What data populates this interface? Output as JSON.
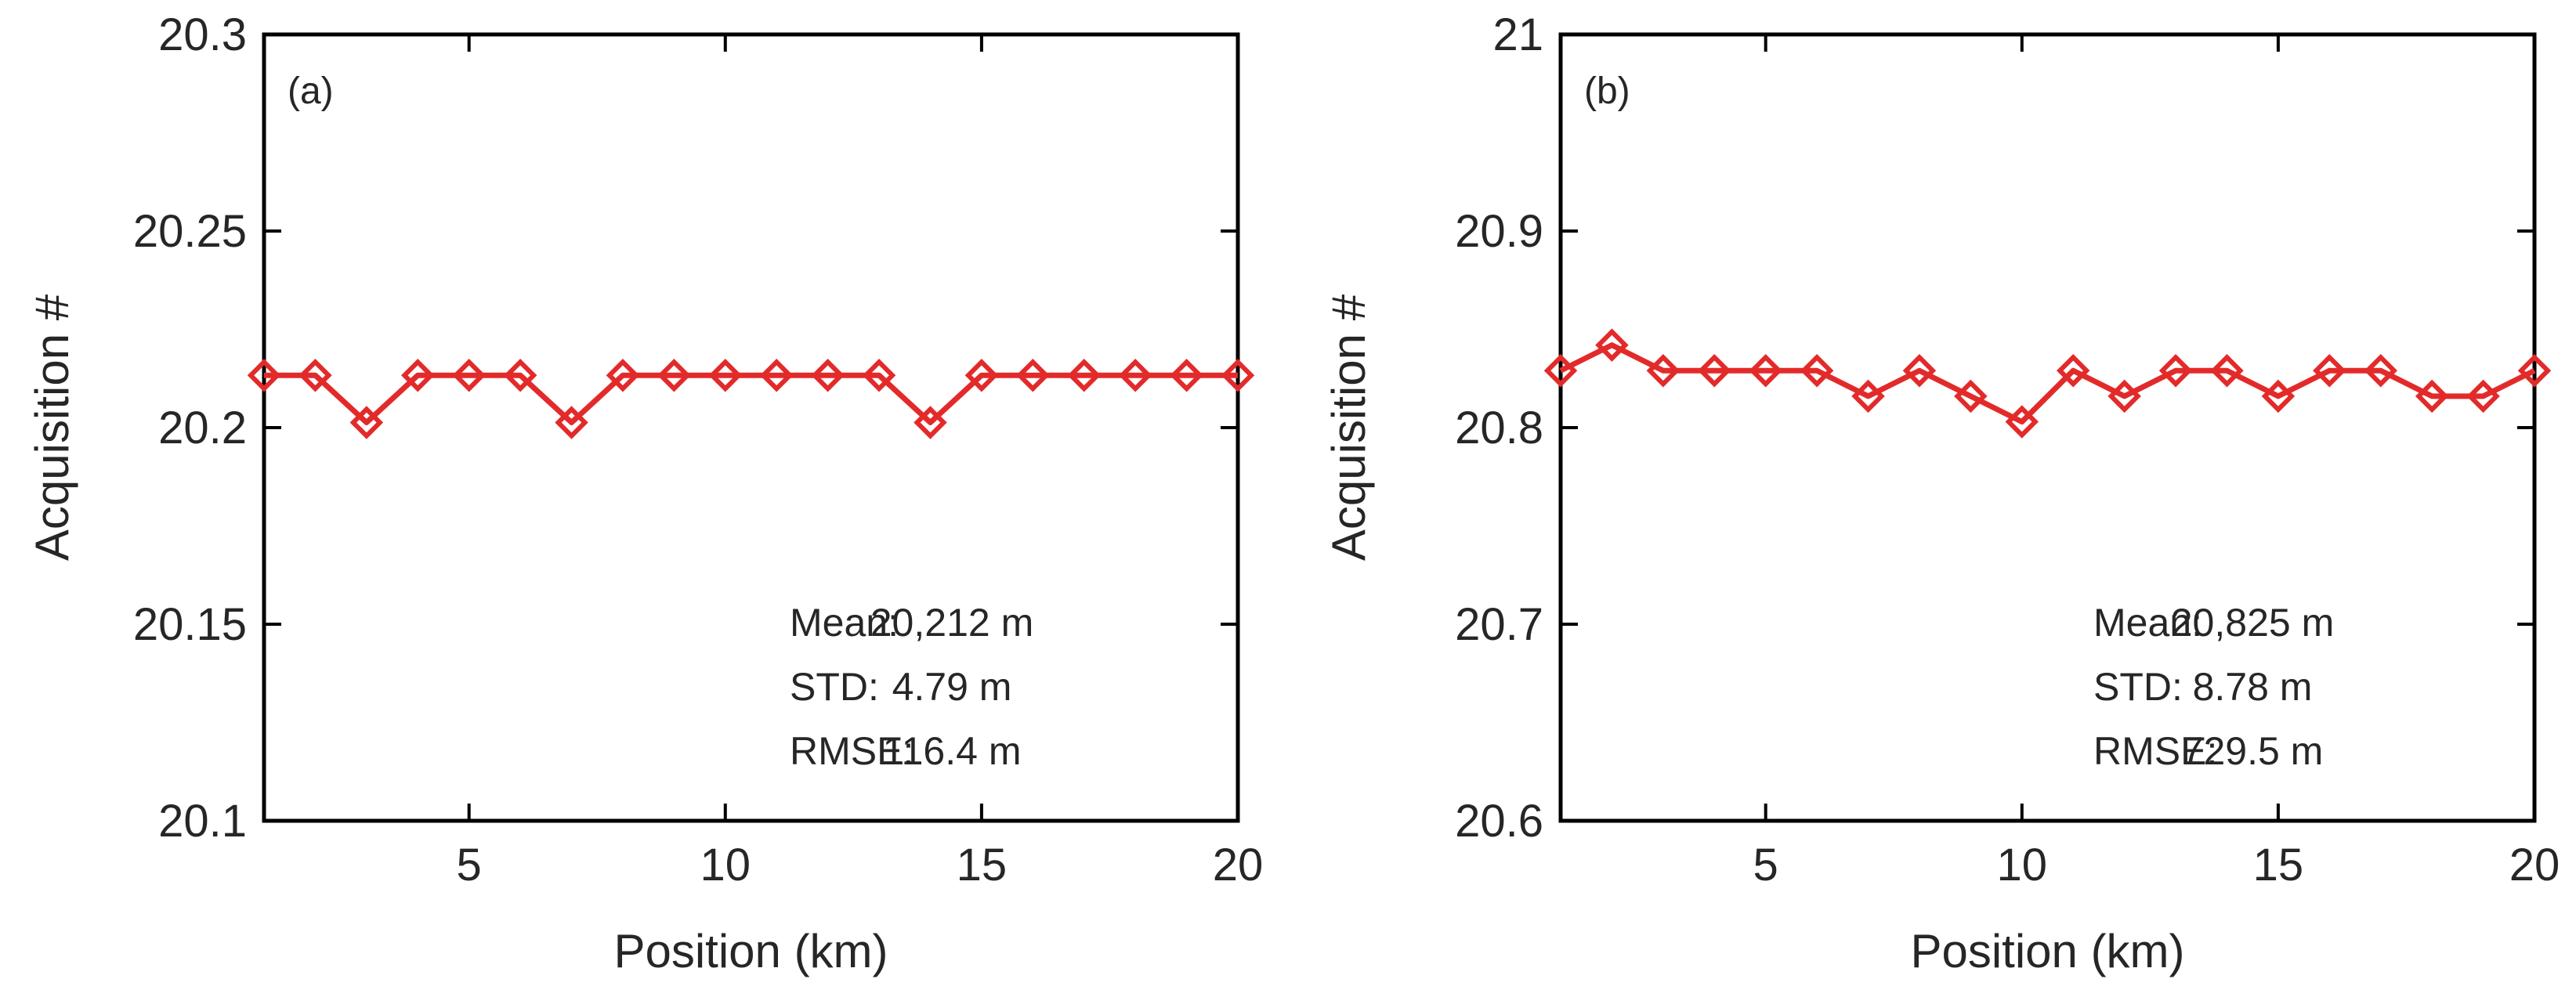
{
  "chart_data": [
    {
      "type": "line",
      "panel_label": "(a)",
      "xlabel": "Position (km)",
      "ylabel": "Acquisition #",
      "xlim": [
        1,
        20
      ],
      "ylim": [
        20.1,
        20.3
      ],
      "xticks": [
        5,
        10,
        15,
        20
      ],
      "xtick_labels": [
        "5",
        "10",
        "15",
        "20"
      ],
      "yticks": [
        20.1,
        20.15,
        20.2,
        20.25,
        20.3
      ],
      "ytick_labels": [
        "20.1",
        "20.15",
        "20.2",
        "20.25",
        "20.3"
      ],
      "grid": false,
      "color": "#e32a2a",
      "marker": "diamond",
      "series": [
        {
          "name": "Acquisition",
          "x": [
            1,
            2,
            3,
            4,
            5,
            6,
            7,
            8,
            9,
            10,
            11,
            12,
            13,
            14,
            15,
            16,
            17,
            18,
            19,
            20
          ],
          "values": [
            20.2133,
            20.2133,
            20.2013,
            20.2133,
            20.2133,
            20.2133,
            20.2013,
            20.2133,
            20.2133,
            20.2133,
            20.2133,
            20.2133,
            20.2133,
            20.2013,
            20.2133,
            20.2133,
            20.2133,
            20.2133,
            20.2133,
            20.2133
          ]
        }
      ],
      "stats": [
        {
          "label": "Mean:",
          "value": "20,212 m"
        },
        {
          "label": "STD:",
          "value": "4.79 m"
        },
        {
          "label": "RMSE:",
          "value": "116.4 m"
        }
      ]
    },
    {
      "type": "line",
      "panel_label": "(b)",
      "xlabel": "Position (km)",
      "ylabel": "Acquisition #",
      "xlim": [
        1,
        20
      ],
      "ylim": [
        20.6,
        21
      ],
      "xticks": [
        5,
        10,
        15,
        20
      ],
      "xtick_labels": [
        "5",
        "10",
        "15",
        "20"
      ],
      "yticks": [
        20.6,
        20.7,
        20.8,
        20.9,
        21
      ],
      "ytick_labels": [
        "20.6",
        "20.7",
        "20.8",
        "20.9",
        "21"
      ],
      "grid": false,
      "color": "#e32a2a",
      "marker": "diamond",
      "series": [
        {
          "name": "Acquisition",
          "x": [
            1,
            2,
            3,
            4,
            5,
            6,
            7,
            8,
            9,
            10,
            11,
            12,
            13,
            14,
            15,
            16,
            17,
            18,
            19,
            20
          ],
          "values": [
            20.829,
            20.842,
            20.829,
            20.829,
            20.829,
            20.829,
            20.816,
            20.829,
            20.816,
            20.803,
            20.829,
            20.816,
            20.829,
            20.829,
            20.816,
            20.829,
            20.829,
            20.816,
            20.816,
            20.829
          ]
        }
      ],
      "stats": [
        {
          "label": "Mean:",
          "value": "20,825 m"
        },
        {
          "label": "STD:",
          "value": "8.78 m"
        },
        {
          "label": "RMSE:",
          "value": "729.5 m"
        }
      ]
    }
  ]
}
